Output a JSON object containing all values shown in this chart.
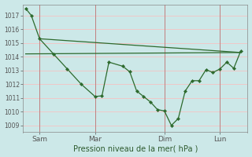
{
  "xlabel": "Pression niveau de la mer( hPa )",
  "bg_color": "#cce8e8",
  "grid_color": "#f0c8c8",
  "line_color": "#2d6a2d",
  "ylim": [
    1008.5,
    1017.8
  ],
  "xtick_positions": [
    1,
    5,
    10,
    14
  ],
  "xtick_labels": [
    "Sam",
    "Mar",
    "Dim",
    "Lun"
  ],
  "vline_positions": [
    1,
    5,
    10,
    14
  ],
  "ytick_values": [
    1009,
    1010,
    1011,
    1012,
    1013,
    1014,
    1015,
    1016,
    1017
  ],
  "xlim": [
    -0.2,
    16.0
  ],
  "main_x": [
    0,
    0.4,
    1.0,
    2.0,
    3.0,
    4.0,
    5.0,
    5.5,
    6.0,
    7.0,
    7.5,
    8.0,
    8.5,
    9.0,
    9.5,
    10.0,
    10.5,
    11.0,
    11.5,
    12.0,
    12.5,
    13.0,
    13.5,
    14.0,
    14.5,
    15.0,
    15.5
  ],
  "main_y": [
    1017.5,
    1017.0,
    1015.3,
    1014.2,
    1013.1,
    1012.0,
    1011.1,
    1011.15,
    1013.6,
    1013.3,
    1012.9,
    1011.5,
    1011.1,
    1010.7,
    1010.15,
    1010.05,
    1009.0,
    1009.5,
    1011.5,
    1012.25,
    1012.25,
    1013.05,
    1012.85,
    1013.1,
    1013.6,
    1013.15,
    1014.4
  ],
  "trend_x": [
    0,
    15.5
  ],
  "trend_y": [
    1014.2,
    1014.3
  ],
  "trend2_x": [
    1.0,
    15.5
  ],
  "trend2_y": [
    1015.3,
    1014.3
  ]
}
